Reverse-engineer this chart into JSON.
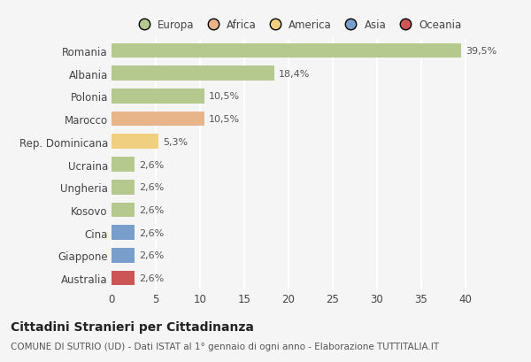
{
  "title": "Cittadini Stranieri per Cittadinanza",
  "subtitle": "COMUNE DI SUTRIO (UD) - Dati ISTAT al 1° gennaio di ogni anno - Elaborazione TUTTITALIA.IT",
  "categories": [
    "Romania",
    "Albania",
    "Polonia",
    "Marocco",
    "Rep. Dominicana",
    "Ucraina",
    "Ungheria",
    "Kosovo",
    "Cina",
    "Giappone",
    "Australia"
  ],
  "values": [
    39.5,
    18.4,
    10.5,
    10.5,
    5.3,
    2.6,
    2.6,
    2.6,
    2.6,
    2.6,
    2.6
  ],
  "labels": [
    "39,5%",
    "18,4%",
    "10,5%",
    "10,5%",
    "5,3%",
    "2,6%",
    "2,6%",
    "2,6%",
    "2,6%",
    "2,6%",
    "2,6%"
  ],
  "colors": [
    "#b5c98e",
    "#b5c98e",
    "#b5c98e",
    "#e8b48a",
    "#f0d080",
    "#b5c98e",
    "#b5c98e",
    "#b5c98e",
    "#7a9ecc",
    "#7a9ecc",
    "#cc5555"
  ],
  "legend": [
    {
      "label": "Europa",
      "color": "#b5c98e"
    },
    {
      "label": "Africa",
      "color": "#e8b48a"
    },
    {
      "label": "America",
      "color": "#f0d080"
    },
    {
      "label": "Asia",
      "color": "#7a9ecc"
    },
    {
      "label": "Oceania",
      "color": "#cc5555"
    }
  ],
  "xlim": [
    0,
    42
  ],
  "xticks": [
    0,
    5,
    10,
    15,
    20,
    25,
    30,
    35,
    40
  ],
  "background_color": "#f5f5f5",
  "plot_bg_color": "#f5f5f5",
  "grid_color": "#ffffff",
  "bar_height": 0.65,
  "title_fontsize": 10,
  "subtitle_fontsize": 7.5,
  "tick_fontsize": 8.5,
  "label_fontsize": 8,
  "legend_fontsize": 8.5
}
